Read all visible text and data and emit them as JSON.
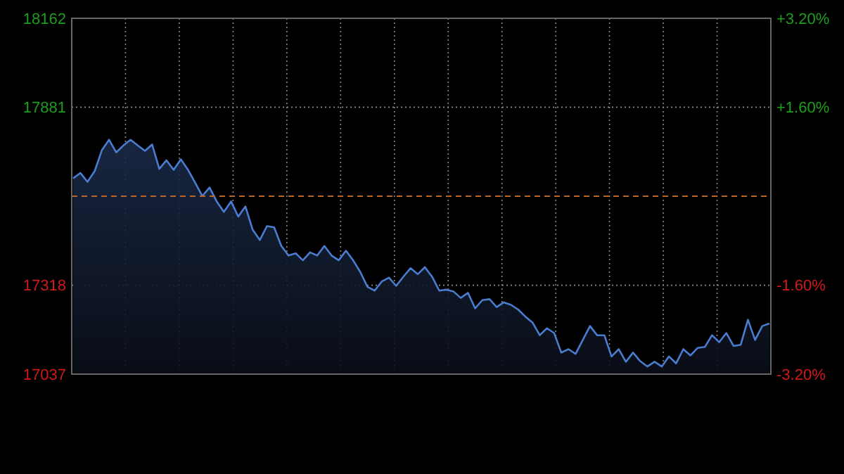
{
  "chart_data": {
    "type": "area",
    "categories": [
      null,
      null,
      null,
      null,
      null,
      null,
      null,
      null,
      null,
      null,
      null,
      null,
      null,
      null,
      null,
      null,
      null,
      null,
      null,
      null,
      null,
      null,
      null,
      null,
      null,
      null,
      null,
      null,
      null,
      null,
      null,
      null,
      null,
      null,
      null,
      null,
      null,
      null,
      null,
      null,
      null,
      null,
      null,
      null,
      null,
      null,
      null,
      null,
      null,
      null,
      null,
      null,
      null,
      null,
      null,
      null,
      null,
      null,
      null,
      null,
      null,
      null,
      null,
      null,
      null,
      null,
      null,
      null,
      null,
      null,
      null,
      null,
      null,
      null,
      null,
      null,
      null,
      null,
      null,
      null,
      null,
      null,
      null,
      null,
      null,
      null,
      null,
      null,
      null,
      null,
      null,
      null,
      null,
      null,
      null,
      null,
      null,
      null
    ],
    "series": [
      {
        "color": "#4a7cd0",
        "values": [
          17656,
          17673,
          17645,
          17679,
          17745,
          17778,
          17738,
          17760,
          17778,
          17760,
          17743,
          17763,
          17686,
          17713,
          17683,
          17716,
          17683,
          17642,
          17600,
          17627,
          17583,
          17550,
          17583,
          17535,
          17567,
          17494,
          17461,
          17505,
          17501,
          17442,
          17412,
          17419,
          17397,
          17422,
          17412,
          17442,
          17412,
          17397,
          17427,
          17397,
          17360,
          17313,
          17301,
          17330,
          17342,
          17316,
          17345,
          17372,
          17353,
          17375,
          17345,
          17301,
          17304,
          17298,
          17278,
          17294,
          17245,
          17271,
          17274,
          17249,
          17264,
          17256,
          17241,
          17219,
          17200,
          17160,
          17182,
          17167,
          17105,
          17116,
          17101,
          17145,
          17189,
          17160,
          17160,
          17093,
          17116,
          17076,
          17105,
          17078,
          17061,
          17076,
          17061,
          17093,
          17071,
          17116,
          17096,
          17120,
          17123,
          17160,
          17138,
          17167,
          17126,
          17130,
          17209,
          17145,
          17189,
          17197
        ]
      }
    ],
    "ylim": [
      17037,
      18162
    ],
    "yticks": [
      17037,
      17318,
      17881,
      18162
    ],
    "y2lim": [
      -3.2,
      3.2
    ],
    "y2ticks": [
      {
        "value": 3.2,
        "label": "+3.20%"
      },
      {
        "value": 1.6,
        "label": "+1.60%"
      },
      {
        "value": -1.6,
        "label": "-1.60%"
      },
      {
        "value": -3.2,
        "label": "-3.20%"
      }
    ],
    "ref_lines": [
      {
        "axis": "y",
        "value": 17599.5,
        "color": "#b8652a",
        "line_style": "dashed"
      }
    ],
    "grid": true,
    "tick_labels": "y"
  }
}
